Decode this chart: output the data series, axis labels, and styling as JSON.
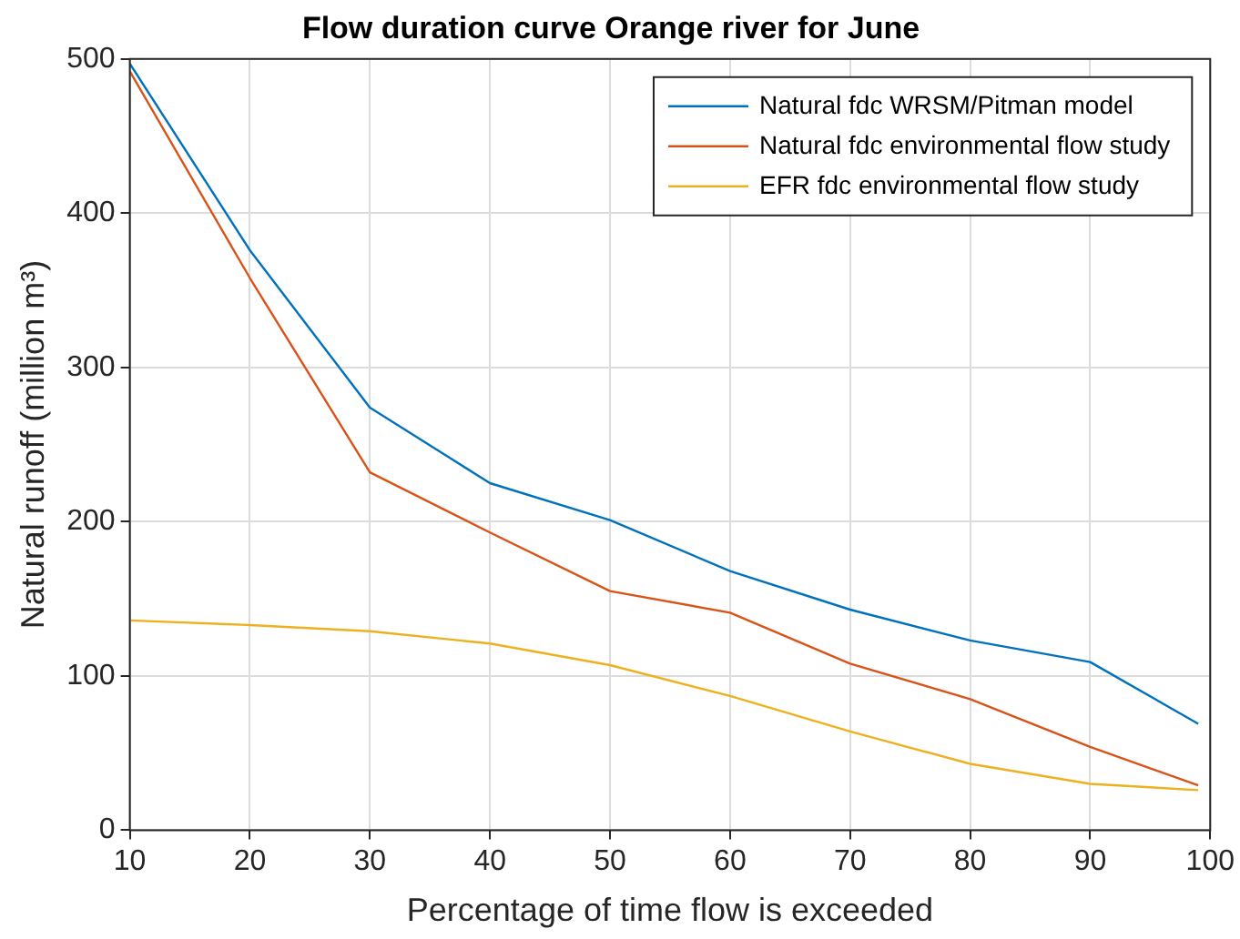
{
  "chart_data": {
    "type": "line",
    "title": "Flow duration curve Orange river for June",
    "xlabel": "Percentage of time flow is exceeded",
    "ylabel": "Natural runoff (million m³)",
    "x": [
      10,
      20,
      30,
      40,
      50,
      60,
      70,
      80,
      90,
      99
    ],
    "series": [
      {
        "name": "Natural fdc WRSM/Pitman model",
        "color": "#0072bd",
        "values": [
          497,
          376,
          274,
          225,
          201,
          168,
          143,
          123,
          109,
          69
        ]
      },
      {
        "name": "Natural fdc environmental flow study",
        "color": "#d95319",
        "values": [
          492,
          358,
          232,
          193,
          155,
          141,
          108,
          85,
          54,
          29
        ]
      },
      {
        "name": "EFR fdc environmental flow study",
        "color": "#edb120",
        "values": [
          136,
          133,
          129,
          121,
          107,
          87,
          64,
          43,
          30,
          26
        ]
      }
    ],
    "xlim": [
      10,
      100
    ],
    "xticks": [
      10,
      20,
      30,
      40,
      50,
      60,
      70,
      80,
      90,
      100
    ],
    "ylim": [
      0,
      500
    ],
    "yticks": [
      0,
      100,
      200,
      300,
      400,
      500
    ],
    "grid": true,
    "legend": "top right",
    "marker": "none",
    "line_style": "solid"
  }
}
